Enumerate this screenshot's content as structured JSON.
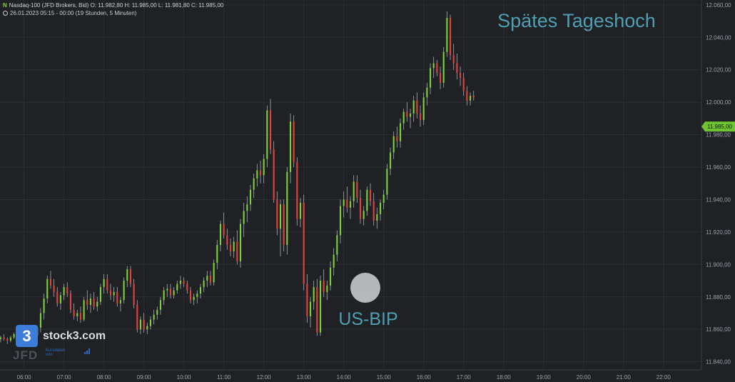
{
  "header": {
    "symbol_icon": "nasdaq-icon",
    "line1": "Nasdaq-100 (JFD Brokers, Bid)  O: 11.982,80  H: 11.985,00  L: 11.981,80  C: 11.985,00",
    "line2": "26.01.2023 05:15 - 00:00   (19 Stunden, 5 Minuten)"
  },
  "branding": {
    "logo_text": "stock3.com",
    "logo_digit": "3",
    "broker": "JFD",
    "small_text": "Kursdaten von"
  },
  "annotations": {
    "late_high": "Spätes Tageshoch",
    "gdp": "US-BIP"
  },
  "colors": {
    "background": "#1f2125",
    "grid": "#2c2f35",
    "up": "#7fd13b",
    "down": "#e2433f",
    "wick": "#a9adb3",
    "annotation": "#4f9fb4",
    "price_tag": "#6ec531"
  },
  "chart_data": {
    "type": "candlestick",
    "interval": "5 Minuten",
    "y_ticks": [
      "12.060,00",
      "12.040,00",
      "12.020,00",
      "12.000,00",
      "11.980,00",
      "11.960,00",
      "11.940,00",
      "11.920,00",
      "11.900,00",
      "11.880,00",
      "11.860,00",
      "11.840,00"
    ],
    "y_tick_values": [
      12060,
      12040,
      12020,
      12000,
      11980,
      11960,
      11940,
      11920,
      11900,
      11880,
      11860,
      11840
    ],
    "ylim": [
      11835,
      12063
    ],
    "x_ticks": [
      "06:00",
      "07:00",
      "08:00",
      "09:00",
      "10:00",
      "11:00",
      "12:00",
      "13:00",
      "14:00",
      "15:00",
      "16:00",
      "17:00",
      "18:00",
      "19:00",
      "20:00",
      "21:00",
      "22:00"
    ],
    "x_tick_hours": [
      6,
      7,
      8,
      9,
      10,
      11,
      12,
      13,
      14,
      15,
      16,
      17,
      18,
      19,
      20,
      21,
      22
    ],
    "xlim_hours": [
      5.4,
      22.95
    ],
    "last_price_label": "11.985,00",
    "last_price": 11985,
    "candle_start_hour": 5.4167,
    "candle_step_hours": 0.08333,
    "candles": [
      [
        11854,
        11856,
        11852,
        11855
      ],
      [
        11855,
        11857,
        11853,
        11854
      ],
      [
        11854,
        11855,
        11851,
        11853
      ],
      [
        11853,
        11856,
        11852,
        11855
      ],
      [
        11855,
        11858,
        11854,
        11857
      ],
      [
        11857,
        11858,
        11853,
        11854
      ],
      [
        11854,
        11856,
        11852,
        11855
      ],
      [
        11855,
        11858,
        11854,
        11857
      ],
      [
        11857,
        11860,
        11855,
        11858
      ],
      [
        11858,
        11859,
        11854,
        11855
      ],
      [
        11855,
        11857,
        11853,
        11856
      ],
      [
        11856,
        11862,
        11855,
        11861
      ],
      [
        11861,
        11873,
        11858,
        11870
      ],
      [
        11870,
        11882,
        11866,
        11879
      ],
      [
        11879,
        11893,
        11876,
        11891
      ],
      [
        11891,
        11896,
        11885,
        11887
      ],
      [
        11887,
        11891,
        11880,
        11883
      ],
      [
        11883,
        11886,
        11874,
        11876
      ],
      [
        11876,
        11883,
        11872,
        11881
      ],
      [
        11881,
        11888,
        11878,
        11886
      ],
      [
        11886,
        11889,
        11880,
        11882
      ],
      [
        11882,
        11884,
        11870,
        11872
      ],
      [
        11872,
        11876,
        11866,
        11868
      ],
      [
        11868,
        11872,
        11865,
        11870
      ],
      [
        11870,
        11874,
        11864,
        11866
      ],
      [
        11866,
        11880,
        11865,
        11878
      ],
      [
        11878,
        11884,
        11872,
        11875
      ],
      [
        11875,
        11882,
        11870,
        11879
      ],
      [
        11879,
        11883,
        11872,
        11874
      ],
      [
        11874,
        11880,
        11871,
        11877
      ],
      [
        11877,
        11888,
        11875,
        11886
      ],
      [
        11886,
        11894,
        11882,
        11891
      ],
      [
        11891,
        11894,
        11882,
        11884
      ],
      [
        11884,
        11888,
        11878,
        11881
      ],
      [
        11881,
        11886,
        11877,
        11883
      ],
      [
        11883,
        11886,
        11874,
        11876
      ],
      [
        11876,
        11880,
        11871,
        11878
      ],
      [
        11878,
        11892,
        11876,
        11890
      ],
      [
        11890,
        11899,
        11886,
        11897
      ],
      [
        11897,
        11899,
        11886,
        11888
      ],
      [
        11888,
        11891,
        11873,
        11875
      ],
      [
        11875,
        11878,
        11858,
        11860
      ],
      [
        11860,
        11868,
        11857,
        11866
      ],
      [
        11866,
        11870,
        11858,
        11860
      ],
      [
        11860,
        11864,
        11857,
        11862
      ],
      [
        11862,
        11868,
        11860,
        11866
      ],
      [
        11866,
        11872,
        11863,
        11869
      ],
      [
        11869,
        11874,
        11866,
        11872
      ],
      [
        11872,
        11880,
        11869,
        11878
      ],
      [
        11878,
        11886,
        11875,
        11884
      ],
      [
        11884,
        11888,
        11880,
        11885
      ],
      [
        11885,
        11888,
        11879,
        11881
      ],
      [
        11881,
        11886,
        11879,
        11884
      ],
      [
        11884,
        11890,
        11882,
        11888
      ],
      [
        11888,
        11893,
        11885,
        11890
      ],
      [
        11890,
        11892,
        11886,
        11888
      ],
      [
        11888,
        11890,
        11882,
        11884
      ],
      [
        11884,
        11886,
        11876,
        11878
      ],
      [
        11878,
        11882,
        11875,
        11880
      ],
      [
        11880,
        11884,
        11876,
        11882
      ],
      [
        11882,
        11888,
        11879,
        11886
      ],
      [
        11886,
        11892,
        11883,
        11890
      ],
      [
        11890,
        11896,
        11886,
        11893
      ],
      [
        11893,
        11896,
        11887,
        11889
      ],
      [
        11889,
        11903,
        11887,
        11901
      ],
      [
        11901,
        11915,
        11897,
        11912
      ],
      [
        11912,
        11927,
        11908,
        11925
      ],
      [
        11925,
        11932,
        11916,
        11918
      ],
      [
        11918,
        11922,
        11909,
        11912
      ],
      [
        11912,
        11916,
        11905,
        11908
      ],
      [
        11908,
        11917,
        11904,
        11914
      ],
      [
        11914,
        11921,
        11900,
        11902
      ],
      [
        11902,
        11928,
        11898,
        11925
      ],
      [
        11925,
        11938,
        11917,
        11933
      ],
      [
        11933,
        11942,
        11926,
        11937
      ],
      [
        11937,
        11949,
        11933,
        11946
      ],
      [
        11946,
        11956,
        11941,
        11953
      ],
      [
        11953,
        11962,
        11948,
        11958
      ],
      [
        11958,
        11964,
        11950,
        11955
      ],
      [
        11955,
        11968,
        11950,
        11965
      ],
      [
        11965,
        11998,
        11960,
        11995
      ],
      [
        11995,
        12002,
        11968,
        11971
      ],
      [
        11971,
        11976,
        11938,
        11940
      ],
      [
        11940,
        11945,
        11918,
        11922
      ],
      [
        11922,
        11940,
        11905,
        11937
      ],
      [
        11937,
        11940,
        11908,
        11912
      ],
      [
        11912,
        11960,
        11906,
        11957
      ],
      [
        11957,
        11993,
        11950,
        11988
      ],
      [
        11988,
        11992,
        11960,
        11963
      ],
      [
        11963,
        11966,
        11924,
        11928
      ],
      [
        11928,
        11941,
        11923,
        11938
      ],
      [
        11938,
        11943,
        11884,
        11888
      ],
      [
        11888,
        11894,
        11864,
        11868
      ],
      [
        11868,
        11880,
        11861,
        11877
      ],
      [
        11877,
        11890,
        11872,
        11886
      ],
      [
        11886,
        11891,
        11856,
        11858
      ],
      [
        11858,
        11893,
        11856,
        11890
      ],
      [
        11890,
        11897,
        11880,
        11883
      ],
      [
        11883,
        11890,
        11878,
        11887
      ],
      [
        11887,
        11902,
        11884,
        11898
      ],
      [
        11898,
        11910,
        11893,
        11906
      ],
      [
        11906,
        11921,
        11902,
        11918
      ],
      [
        11918,
        11940,
        11913,
        11936
      ],
      [
        11936,
        11945,
        11929,
        11940
      ],
      [
        11940,
        11948,
        11932,
        11935
      ],
      [
        11935,
        11942,
        11928,
        11939
      ],
      [
        11939,
        11955,
        11935,
        11951
      ],
      [
        11951,
        11955,
        11938,
        11941
      ],
      [
        11941,
        11946,
        11925,
        11928
      ],
      [
        11928,
        11936,
        11924,
        11933
      ],
      [
        11933,
        11948,
        11930,
        11946
      ],
      [
        11946,
        11950,
        11936,
        11939
      ],
      [
        11939,
        11944,
        11924,
        11927
      ],
      [
        11927,
        11935,
        11922,
        11931
      ],
      [
        11931,
        11940,
        11927,
        11938
      ],
      [
        11938,
        11946,
        11934,
        11943
      ],
      [
        11943,
        11962,
        11940,
        11959
      ],
      [
        11959,
        11972,
        11955,
        11969
      ],
      [
        11969,
        11982,
        11965,
        11979
      ],
      [
        11979,
        11985,
        11972,
        11976
      ],
      [
        11976,
        11990,
        11972,
        11987
      ],
      [
        11987,
        11996,
        11983,
        11994
      ],
      [
        11994,
        12000,
        11988,
        11991
      ],
      [
        11991,
        11996,
        11984,
        11993
      ],
      [
        11993,
        12004,
        11988,
        12001
      ],
      [
        12001,
        12006,
        11990,
        11993
      ],
      [
        11993,
        11998,
        11985,
        11989
      ],
      [
        11989,
        12006,
        11986,
        12003
      ],
      [
        12003,
        12012,
        11998,
        12009
      ],
      [
        12009,
        12024,
        12005,
        12021
      ],
      [
        12021,
        12028,
        12015,
        12024
      ],
      [
        12024,
        12026,
        12016,
        12018
      ],
      [
        12018,
        12022,
        12008,
        12012
      ],
      [
        12012,
        12034,
        12009,
        12031
      ],
      [
        12031,
        12056,
        12028,
        12052
      ],
      [
        12052,
        12054,
        12026,
        12029
      ],
      [
        12029,
        12036,
        12020,
        12024
      ],
      [
        12024,
        12030,
        12014,
        12018
      ],
      [
        12018,
        12022,
        12010,
        12015
      ],
      [
        12015,
        12018,
        12004,
        12007
      ],
      [
        12007,
        12010,
        11998,
        12001
      ],
      [
        12001,
        12006,
        11998,
        12004
      ],
      [
        12004,
        12007,
        12001,
        12003
      ]
    ]
  }
}
